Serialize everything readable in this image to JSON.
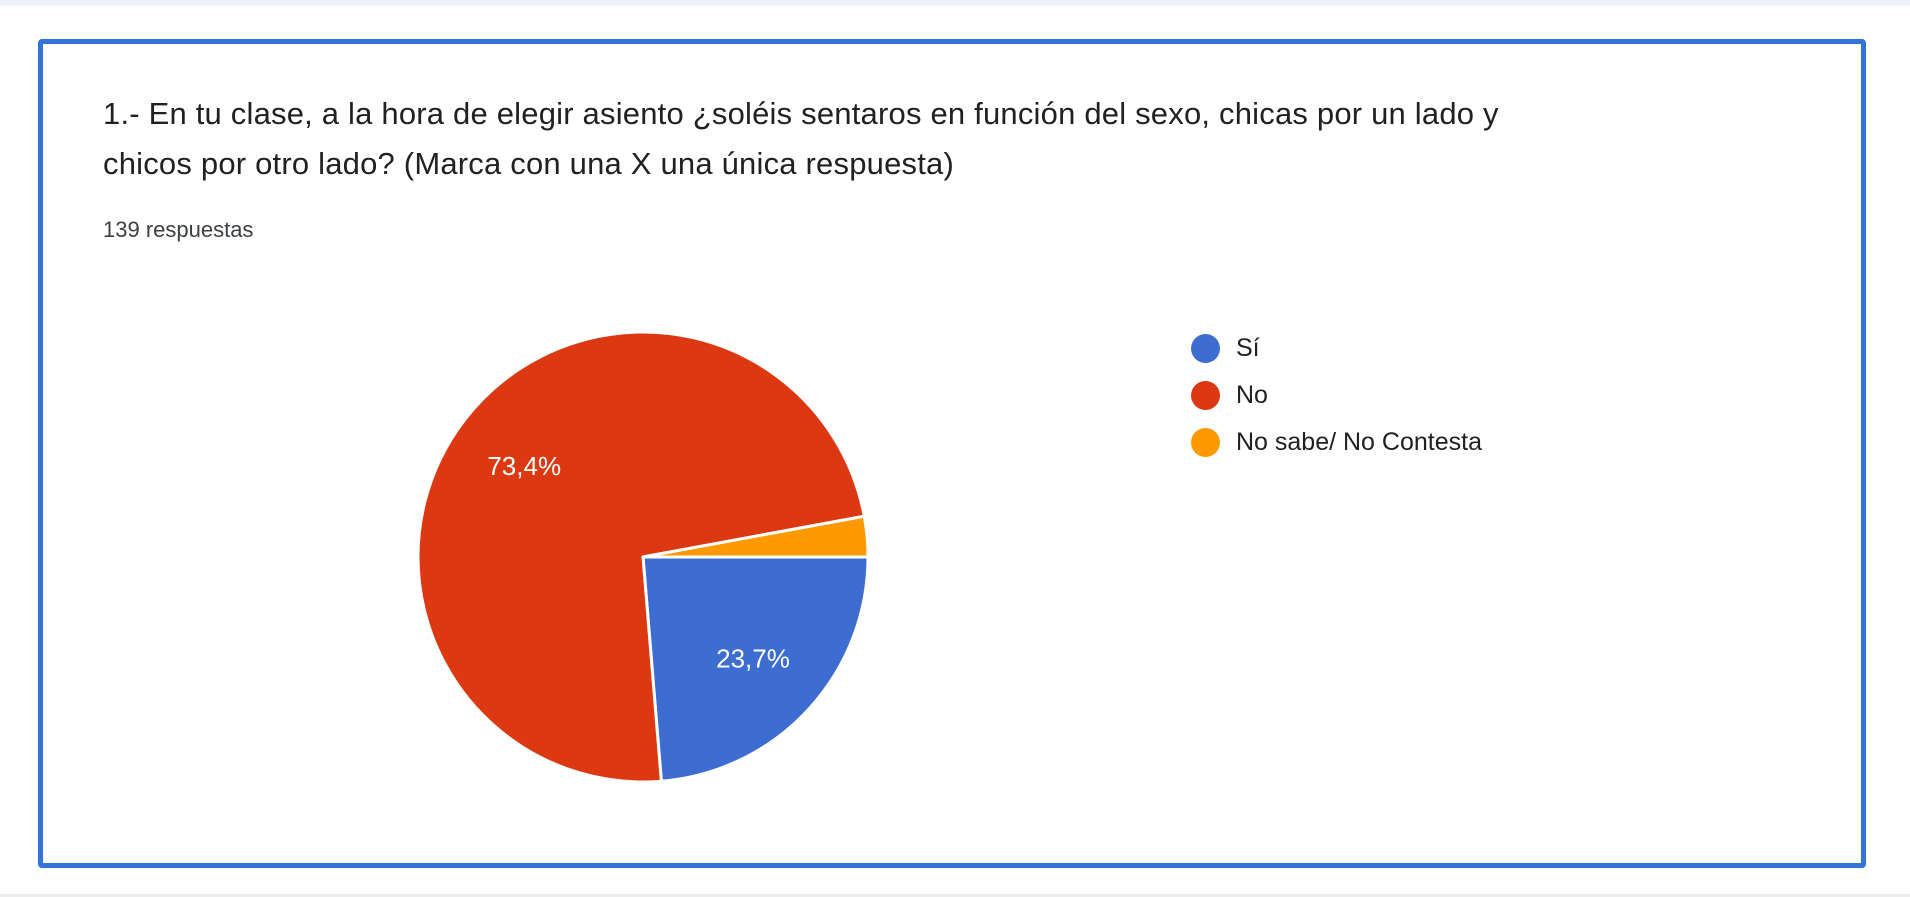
{
  "page": {
    "top_strip_color": "#eef1f9",
    "bottom_strip_color": "#ededed",
    "background": "#ffffff"
  },
  "card": {
    "border_color": "#3374d9"
  },
  "question": {
    "title": "1.- En tu clase, a la hora de elegir asiento ¿soléis sentaros en función del sexo, chicas por un lado y chicos por otro lado? (Marca con una X una única respuesta)",
    "title_lines": [
      "1.- En tu clase, a la hora de elegir asiento ¿soléis sentaros en función del sexo, chicas por un lado y",
      "chicos por otro lado? (Marca con una X una única respuesta)"
    ],
    "response_count": "139 respuestas"
  },
  "chart_data": {
    "type": "pie",
    "title": "",
    "categories": [
      "Sí",
      "No",
      "No sabe/ No Contesta"
    ],
    "values": [
      23.7,
      73.4,
      2.9
    ],
    "value_labels": [
      "23,7%",
      "73,4%",
      ""
    ],
    "colors": [
      "#3d6dd0",
      "#dc3912",
      "#ff9900"
    ],
    "label_text_color": "#ffffff",
    "legend_position": "right",
    "start_angle_deg": 90,
    "radius_px": 225,
    "label_radius_ratio": 0.665,
    "slice_border_color": "#ffffff",
    "total_responses": 139
  }
}
